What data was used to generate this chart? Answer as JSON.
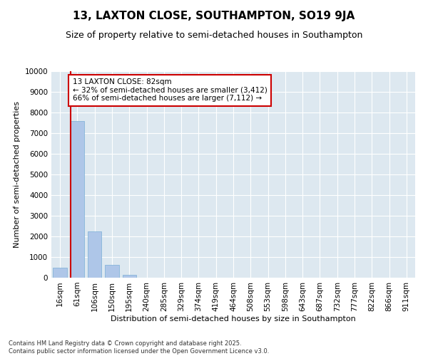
{
  "title": "13, LAXTON CLOSE, SOUTHAMPTON, SO19 9JA",
  "subtitle": "Size of property relative to semi-detached houses in Southampton",
  "xlabel": "Distribution of semi-detached houses by size in Southampton",
  "ylabel": "Number of semi-detached properties",
  "footnote": "Contains HM Land Registry data © Crown copyright and database right 2025.\nContains public sector information licensed under the Open Government Licence v3.0.",
  "categories": [
    "16sqm",
    "61sqm",
    "106sqm",
    "150sqm",
    "195sqm",
    "240sqm",
    "285sqm",
    "329sqm",
    "374sqm",
    "419sqm",
    "464sqm",
    "508sqm",
    "553sqm",
    "598sqm",
    "643sqm",
    "687sqm",
    "732sqm",
    "777sqm",
    "822sqm",
    "866sqm",
    "911sqm"
  ],
  "values": [
    500,
    7600,
    2250,
    620,
    130,
    0,
    0,
    0,
    0,
    0,
    0,
    0,
    0,
    0,
    0,
    0,
    0,
    0,
    0,
    0,
    0
  ],
  "bar_color": "#aec6e8",
  "bar_edge_color": "#7aaed6",
  "vline_color": "#cc0000",
  "annotation_box_color": "#cc0000",
  "background_color": "#dde8f0",
  "marker_label": "13 LAXTON CLOSE: 82sqm",
  "smaller_pct": "32%",
  "smaller_count": "3,412",
  "larger_pct": "66%",
  "larger_count": "7,112",
  "ylim": [
    0,
    10000
  ],
  "yticks": [
    0,
    1000,
    2000,
    3000,
    4000,
    5000,
    6000,
    7000,
    8000,
    9000,
    10000
  ],
  "title_fontsize": 11,
  "subtitle_fontsize": 9,
  "ylabel_fontsize": 8,
  "xlabel_fontsize": 8,
  "tick_fontsize": 7.5,
  "footnote_fontsize": 6,
  "annot_fontsize": 7.5
}
